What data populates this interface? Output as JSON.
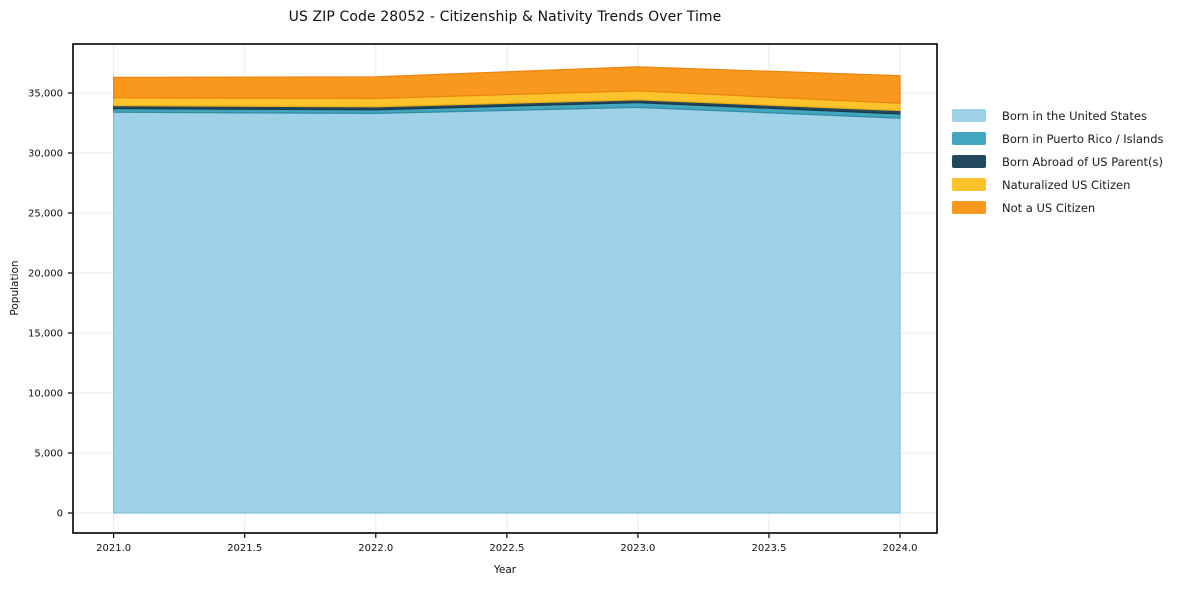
{
  "chart_data": {
    "type": "area",
    "stacked": true,
    "title": "US ZIP Code 28052 - Citizenship & Nativity Trends Over Time",
    "xlabel": "Year",
    "ylabel": "Population",
    "x": [
      2021,
      2022,
      2023,
      2024
    ],
    "series": [
      {
        "name": "Born in the United States",
        "color": "#9FD1E8",
        "edge": "#84BEDA",
        "values": [
          33400,
          33300,
          33800,
          32900
        ]
      },
      {
        "name": "Born in Puerto Rico / Islands",
        "color": "#41A6BE",
        "edge": "#338CA2",
        "values": [
          300,
          300,
          400,
          360
        ]
      },
      {
        "name": "Born Abroad of US Parent(s)",
        "color": "#22485E",
        "edge": "#1A3A4D",
        "values": [
          250,
          250,
          230,
          280
        ]
      },
      {
        "name": "Naturalized US Citizen",
        "color": "#FCC32D",
        "edge": "#EFAD17",
        "values": [
          650,
          700,
          750,
          600
        ]
      },
      {
        "name": "Not a US Citizen",
        "color": "#F8991D",
        "edge": "#EA8410",
        "values": [
          1700,
          1800,
          2000,
          2300
        ]
      }
    ],
    "totals": [
      36300,
      36350,
      37180,
      36440
    ],
    "x_ticks": [
      2021.0,
      2021.5,
      2022.0,
      2022.5,
      2023.0,
      2023.5,
      2024.0
    ],
    "x_tick_labels": [
      "2021.0",
      "2021.5",
      "2022.0",
      "2022.5",
      "2023.0",
      "2023.5",
      "2024.0"
    ],
    "y_ticks": [
      0,
      5000,
      10000,
      15000,
      20000,
      25000,
      30000,
      35000
    ],
    "y_tick_labels": [
      "0",
      "5,000",
      "10,000",
      "15,000",
      "20,000",
      "25,000",
      "30,000",
      "35,000"
    ],
    "xlim": [
      2020.845,
      2024.141
    ],
    "ylim": [
      -1667,
      39083
    ],
    "grid": true,
    "grid_color": "#ebebeb",
    "frame_color": "#000000",
    "tick_text_color": "#111111",
    "legend_position": "right",
    "legend_frame": false
  }
}
